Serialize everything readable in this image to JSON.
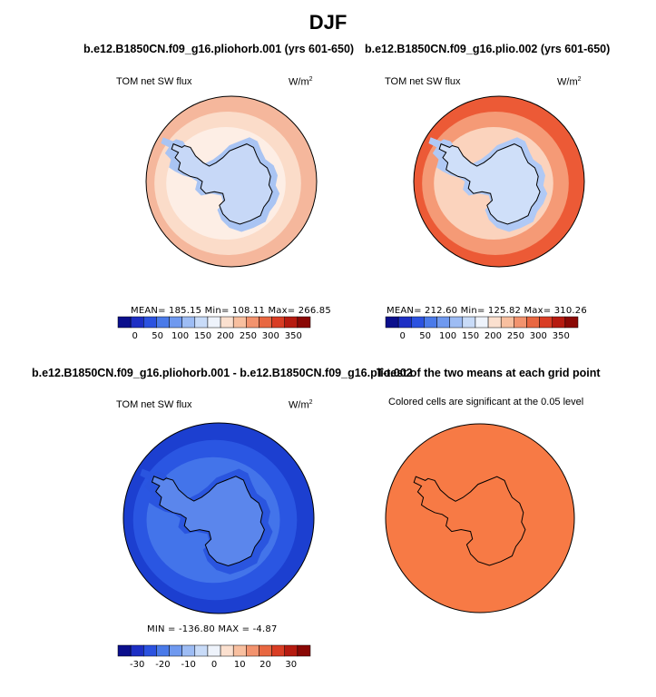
{
  "title": "DJF",
  "panels": [
    {
      "title": "b.e12.B1850CN.f09_g16.pliohorb.001 (yrs 601-650)",
      "left_label": "TOM net SW flux",
      "unit_base": "W/m",
      "unit_exp": "2",
      "stats": "MEAN= 185.15   Min= 108.11   Max= 266.85",
      "colorbar_ticks": [
        "0",
        "50",
        "100",
        "150",
        "200",
        "250",
        "300",
        "350"
      ],
      "colors": {
        "outer": "#f5b79c",
        "mid": "#fbdcc9",
        "ring": "#fdeee5",
        "inner": "#a9c4f3",
        "ice": "#c7d8f7"
      }
    },
    {
      "title": "b.e12.B1850CN.f09_g16.plio.002 (yrs 601-650)",
      "left_label": "TOM net SW flux",
      "unit_base": "W/m",
      "unit_exp": "2",
      "stats": "MEAN= 212.60   Min= 125.82   Max= 310.26",
      "colorbar_ticks": [
        "0",
        "50",
        "100",
        "150",
        "200",
        "250",
        "300",
        "350"
      ],
      "colors": {
        "outer": "#ec5a36",
        "mid": "#f59a76",
        "ring": "#fbd3bd",
        "inner": "#b0c9f5",
        "ice": "#cfdff9"
      }
    },
    {
      "title": "b.e12.B1850CN.f09_g16.pliohorb.001 - b.e12.B1850CN.f09_g16.plio.002",
      "left_label": "TOM net SW flux",
      "unit_base": "W/m",
      "unit_exp": "2",
      "stats": "MIN = -136.80  MAX =  -4.87",
      "colorbar_ticks": [
        "-30",
        "-20",
        "-10",
        "0",
        "10",
        "20",
        "30"
      ],
      "colors": {
        "outer": "#1c3fd0",
        "mid": "#2a56e2",
        "ring": "#4374ea",
        "inner": "#2a55df",
        "ice": "#5b86ec"
      }
    },
    {
      "title": "T-test of the two means at each grid point",
      "subtitle": "Colored cells are significant at the 0.05 level",
      "colors": {
        "fill": "#f77a45"
      }
    }
  ],
  "colorbar_palette": [
    "#0b0f8c",
    "#1d2fc4",
    "#2b52e0",
    "#4a7ae9",
    "#6f99ef",
    "#9dbcf4",
    "#c8dbf8",
    "#eef3fb",
    "#fbe0cf",
    "#f8bf9f",
    "#f2936e",
    "#e86741",
    "#d93d24",
    "#b61b10",
    "#8a0805"
  ],
  "chart_data": [
    {
      "type": "heatmap",
      "projection": "polar-stereographic south",
      "title": "b.e12.B1850CN.f09_g16.pliohorb.001 (yrs 601-650)",
      "variable": "TOM net SW flux",
      "units": "W/m2",
      "mean": 185.15,
      "min": 108.11,
      "max": 266.85,
      "colorbar_range": [
        0,
        350
      ]
    },
    {
      "type": "heatmap",
      "projection": "polar-stereographic south",
      "title": "b.e12.B1850CN.f09_g16.plio.002 (yrs 601-650)",
      "variable": "TOM net SW flux",
      "units": "W/m2",
      "mean": 212.6,
      "min": 125.82,
      "max": 310.26,
      "colorbar_range": [
        0,
        350
      ]
    },
    {
      "type": "heatmap",
      "projection": "polar-stereographic south",
      "title": "difference",
      "variable": "TOM net SW flux",
      "units": "W/m2",
      "min": -136.8,
      "max": -4.87,
      "colorbar_range": [
        -30,
        30
      ]
    },
    {
      "type": "heatmap",
      "projection": "polar-stereographic south",
      "title": "T-test of the two means at each grid point",
      "significance_level": 0.05
    }
  ]
}
